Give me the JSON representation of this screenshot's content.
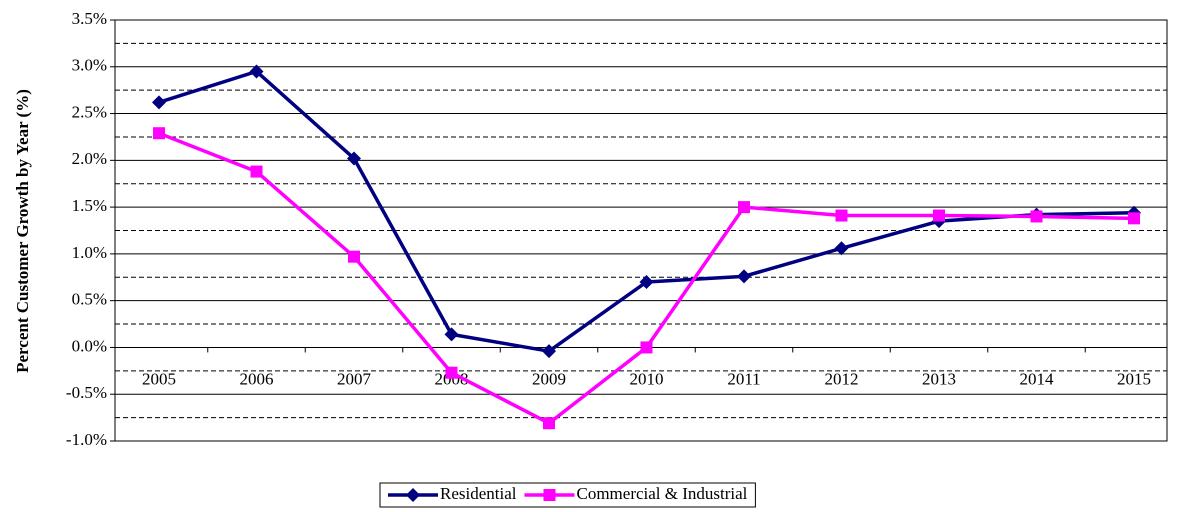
{
  "chart_data": {
    "type": "line",
    "y_label": "Percent Customer Growth by Year (%)",
    "categories": [
      "2005",
      "2006",
      "2007",
      "2008",
      "2009",
      "2010",
      "2011",
      "2012",
      "2013",
      "2014",
      "2015"
    ],
    "series": [
      {
        "name": "Residential",
        "color": "#000080",
        "marker": "diamond",
        "values": [
          2.62,
          2.95,
          2.02,
          0.14,
          -0.04,
          0.7,
          0.76,
          1.06,
          1.35,
          1.42,
          1.44
        ]
      },
      {
        "name": "Commercial & Industrial",
        "color": "#ff00ff",
        "marker": "square",
        "values": [
          2.29,
          1.88,
          0.97,
          -0.27,
          -0.81,
          0.0,
          1.5,
          1.41,
          1.41,
          1.4,
          1.38
        ]
      }
    ],
    "ylim": [
      -1.0,
      3.5
    ],
    "yticks": [
      {
        "value": -1.0,
        "label": "-1.0%"
      },
      {
        "value": -0.5,
        "label": "-0.5%"
      },
      {
        "value": 0.0,
        "label": "0.0%"
      },
      {
        "value": 0.5,
        "label": "0.5%"
      },
      {
        "value": 1.0,
        "label": "1.0%"
      },
      {
        "value": 1.5,
        "label": "1.5%"
      },
      {
        "value": 2.0,
        "label": "2.0%"
      },
      {
        "value": 2.5,
        "label": "2.5%"
      },
      {
        "value": 3.0,
        "label": "3.0%"
      },
      {
        "value": 3.5,
        "label": "3.5%"
      }
    ],
    "y_minor_ticks": [
      -0.75,
      -0.25,
      0.25,
      0.75,
      1.25,
      1.75,
      2.25,
      2.75,
      3.25
    ],
    "grid": true,
    "legend": "bottom"
  }
}
